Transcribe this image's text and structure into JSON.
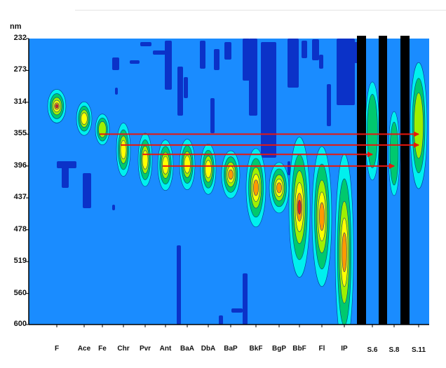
{
  "chart_data": {
    "type": "heatmap",
    "ylabel": "nm",
    "y_ticks": [
      "232",
      "273",
      "314",
      "355",
      "396",
      "437",
      "478",
      "519",
      "560",
      "600"
    ],
    "ylim": [
      232,
      600
    ],
    "y_reversed": true,
    "x_ticks": [
      "F",
      "Ace",
      "Fe",
      "Chr",
      "Pvr",
      "Ant",
      "BaA",
      "DbA",
      "BaP",
      "BkF",
      "BgP",
      "BbF",
      "Fl",
      "IP",
      "S.6",
      "S.8",
      "S.11"
    ],
    "colorscale": [
      "#1a8cff",
      "#0b32c8",
      "#00f0ee",
      "#00c96e",
      "#9ef000",
      "#ffff00",
      "#ff9900",
      "#e0201a"
    ],
    "background": "#1a8cff",
    "separator_color": "#000000",
    "arrow_color": "#e8160e",
    "peaks": [
      {
        "label": "F",
        "y": 319
      },
      {
        "label": "Ace",
        "y": 335
      },
      {
        "label": "Fe",
        "y": 349
      },
      {
        "label": "Chr",
        "y": 375
      },
      {
        "label": "Pvr",
        "y": 388
      },
      {
        "label": "Ant",
        "y": 395
      },
      {
        "label": "BaA",
        "y": 394
      },
      {
        "label": "DbA",
        "y": 400
      },
      {
        "label": "BaP",
        "y": 407
      },
      {
        "label": "BkF",
        "y": 424
      },
      {
        "label": "BgP",
        "y": 424
      },
      {
        "label": "BbF",
        "y": 449
      },
      {
        "label": "Fl",
        "y": 461
      },
      {
        "label": "IP",
        "y": 507
      },
      {
        "label": "S.6",
        "y": 351
      },
      {
        "label": "S.8",
        "y": 380
      },
      {
        "label": "S.11",
        "y": 344
      }
    ],
    "arrows": [
      {
        "from": "Fe",
        "to": "S.11",
        "y": 355
      },
      {
        "from": "Chr",
        "to": "S.11",
        "y": 369
      },
      {
        "from": "Pvr",
        "to": "S.6",
        "y": 381
      },
      {
        "from": "Ant",
        "to": "S.8",
        "y": 396
      }
    ],
    "grid": false
  }
}
